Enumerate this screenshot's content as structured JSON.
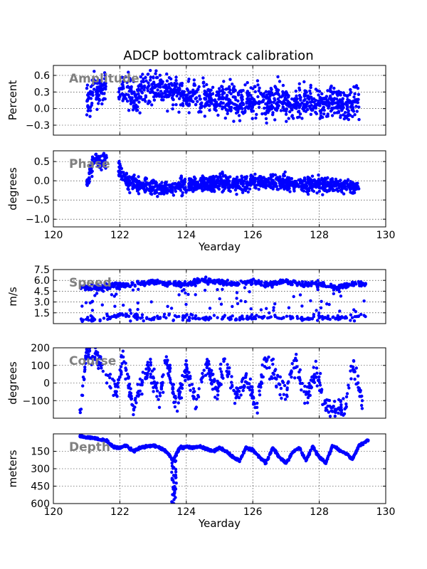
{
  "figure": {
    "title": "ADCP bottomtrack calibration",
    "point_color": "#0000ff",
    "annotation_color": "#808080"
  },
  "chart_data": [
    {
      "type": "scatter",
      "annotation": "Amplitude",
      "ylabel": "Percent",
      "xlabel": "",
      "xlim": [
        120,
        130
      ],
      "ylim": [
        -0.48,
        0.78
      ],
      "yticks": [
        -0.3,
        0.0,
        0.3,
        0.6
      ],
      "ytick_labels": [
        "−0.3",
        "0.0",
        "0.3",
        "0.6"
      ],
      "xticks": [
        120,
        122,
        124,
        126,
        128,
        130
      ],
      "xtick_labels": [],
      "grid": true,
      "series": [
        {
          "x": [
            121.0,
            121.1,
            121.2,
            121.3,
            121.4,
            121.5,
            122.0,
            122.2,
            122.4,
            122.6,
            122.8,
            123.0,
            123.2,
            123.4,
            123.6,
            123.8,
            124.0,
            124.2,
            124.4,
            124.6,
            124.8,
            125.0,
            125.2,
            125.4,
            125.6,
            125.8,
            126.0,
            126.2,
            126.4,
            126.6,
            126.8,
            127.0,
            127.2,
            127.4,
            127.6,
            127.8,
            128.0,
            128.2,
            128.4,
            128.6,
            128.8,
            129.0,
            129.2
          ],
          "y": [
            0.2,
            0.1,
            0.35,
            0.25,
            0.3,
            0.4,
            0.35,
            0.3,
            0.2,
            0.25,
            0.4,
            0.3,
            0.45,
            0.3,
            0.35,
            0.3,
            0.2,
            0.3,
            0.15,
            0.25,
            0.2,
            0.2,
            0.15,
            0.2,
            0.1,
            0.15,
            0.1,
            0.15,
            0.05,
            0.1,
            0.2,
            0.1,
            0.05,
            0.1,
            0.15,
            0.1,
            0.1,
            0.05,
            0.2,
            0.1,
            0.05,
            0.1,
            0.15
          ],
          "spread": 0.28
        }
      ]
    },
    {
      "type": "scatter",
      "annotation": "Phase",
      "ylabel": "degrees",
      "xlabel": "Yearday",
      "xlim": [
        120,
        130
      ],
      "ylim": [
        -1.2,
        0.78
      ],
      "yticks": [
        -1.0,
        -0.5,
        0.0,
        0.5
      ],
      "ytick_labels": [
        "−1.0",
        "−0.5",
        "0.0",
        "0.5"
      ],
      "xticks": [
        120,
        122,
        124,
        126,
        128,
        130
      ],
      "xtick_labels": [
        "120",
        "122",
        "124",
        "126",
        "128",
        "130"
      ],
      "grid": true,
      "series": [
        {
          "x": [
            121.0,
            121.1,
            121.2,
            121.3,
            121.4,
            121.5,
            122.0,
            122.2,
            122.5,
            123.0,
            123.5,
            124.0,
            124.5,
            125.0,
            125.5,
            126.0,
            126.5,
            127.0,
            127.5,
            128.0,
            128.5,
            129.0,
            129.2
          ],
          "y": [
            -0.1,
            0.2,
            0.5,
            0.6,
            0.4,
            0.55,
            0.3,
            0.0,
            -0.1,
            -0.15,
            -0.2,
            -0.1,
            -0.05,
            -0.05,
            -0.1,
            -0.05,
            -0.05,
            -0.05,
            -0.1,
            -0.1,
            -0.1,
            -0.15,
            -0.1
          ],
          "spread": 0.2
        }
      ]
    },
    {
      "type": "scatter",
      "annotation": "Speed",
      "ylabel": "m/s",
      "xlabel": "",
      "xlim": [
        120,
        130
      ],
      "ylim": [
        0,
        7.5
      ],
      "yticks": [
        1.5,
        3.0,
        4.5,
        6.0,
        7.5
      ],
      "ytick_labels": [
        "1.5",
        "3.0",
        "4.5",
        "6.0",
        "7.5"
      ],
      "xticks": [
        120,
        122,
        124,
        126,
        128,
        130
      ],
      "xtick_labels": [],
      "grid": true,
      "series": [
        {
          "x": [
            120.8,
            121.5,
            122.0,
            122.5,
            123.0,
            123.5,
            124.0,
            124.5,
            125.0,
            125.5,
            126.0,
            126.5,
            127.0,
            127.5,
            128.0,
            128.5,
            129.0,
            129.4
          ],
          "y_high": [
            5.0,
            5.0,
            5.5,
            5.5,
            5.8,
            5.5,
            5.5,
            6.0,
            5.8,
            5.5,
            5.8,
            5.5,
            5.8,
            5.5,
            5.5,
            5.0,
            5.5,
            5.5
          ],
          "y_low": [
            0.3,
            0.3,
            1.0,
            0.8,
            0.5,
            0.8,
            0.8,
            0.5,
            0.6,
            0.5,
            0.6,
            0.8,
            0.6,
            0.5,
            0.6,
            0.5,
            0.8,
            1.0
          ]
        }
      ]
    },
    {
      "type": "scatter",
      "annotation": "Course",
      "ylabel": "degrees",
      "xlabel": "",
      "xlim": [
        120,
        130
      ],
      "ylim": [
        -200,
        200
      ],
      "yticks": [
        -100,
        0,
        100,
        200
      ],
      "ytick_labels": [
        "−100",
        "0",
        "100",
        "200"
      ],
      "xticks": [
        120,
        122,
        124,
        126,
        128,
        130
      ],
      "xtick_labels": [],
      "grid": true,
      "series": [
        {
          "x": [
            120.8,
            121.0,
            121.3,
            121.6,
            121.9,
            122.1,
            122.4,
            122.6,
            122.9,
            123.2,
            123.4,
            123.7,
            124.0,
            124.3,
            124.6,
            124.9,
            125.2,
            125.5,
            125.8,
            126.1,
            126.4,
            126.7,
            127.0,
            127.3,
            127.6,
            127.9,
            128.2,
            128.5,
            128.8,
            129.0,
            129.3
          ],
          "y": [
            -150,
            160,
            140,
            60,
            -50,
            150,
            -150,
            -30,
            100,
            -100,
            140,
            -120,
            80,
            -100,
            110,
            -60,
            120,
            -80,
            40,
            -140,
            150,
            10,
            -40,
            120,
            -90,
            80,
            -150,
            -150,
            -140,
            130,
            -120
          ],
          "spread": 60
        }
      ]
    },
    {
      "type": "scatter",
      "annotation": "Depth",
      "ylabel": "meters",
      "xlabel": "Yearday",
      "xlim": [
        120,
        130
      ],
      "ylim": [
        600,
        0
      ],
      "yticks": [
        150,
        300,
        450,
        600
      ],
      "ytick_labels": [
        "150",
        "300",
        "450",
        "600"
      ],
      "xticks": [
        120,
        122,
        124,
        126,
        128,
        130
      ],
      "xtick_labels": [
        "120",
        "122",
        "124",
        "126",
        "128",
        "130"
      ],
      "grid": true,
      "series": [
        {
          "x": [
            120.8,
            121.0,
            121.3,
            121.6,
            121.8,
            122.0,
            122.2,
            122.4,
            122.6,
            122.8,
            123.0,
            123.2,
            123.4,
            123.6,
            123.8,
            124.0,
            124.2,
            124.4,
            124.6,
            124.8,
            125.0,
            125.2,
            125.4,
            125.6,
            125.8,
            126.0,
            126.2,
            126.4,
            126.6,
            126.8,
            127.0,
            127.2,
            127.4,
            127.6,
            127.8,
            128.0,
            128.2,
            128.4,
            128.6,
            128.8,
            129.0,
            129.2,
            129.5
          ],
          "y": [
            20,
            30,
            40,
            60,
            110,
            120,
            100,
            150,
            120,
            110,
            100,
            120,
            150,
            230,
            120,
            110,
            120,
            110,
            130,
            150,
            120,
            150,
            200,
            230,
            120,
            140,
            200,
            250,
            120,
            200,
            250,
            160,
            120,
            230,
            110,
            200,
            250,
            100,
            140,
            170,
            220,
            100,
            50
          ]
        }
      ]
    }
  ]
}
